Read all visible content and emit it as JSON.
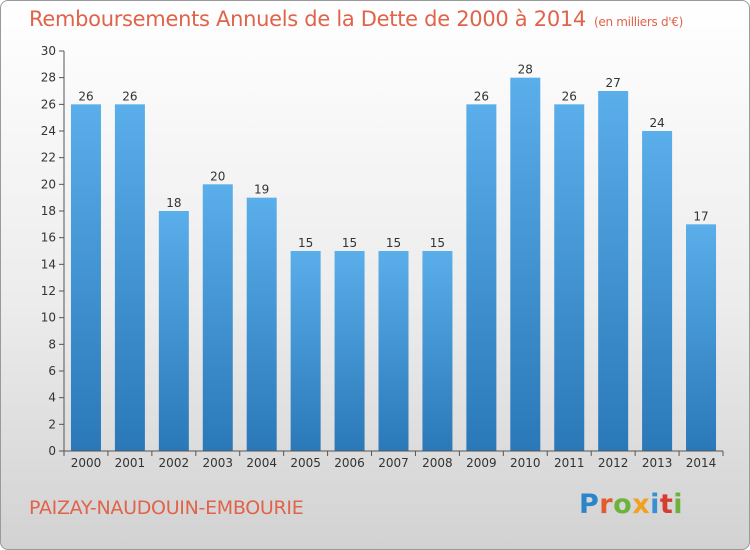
{
  "title": "Remboursements Annuels de la Dette de 2000 à 2014",
  "unit": "(en milliers d'€)",
  "commune": "PAIZAY-NAUDOUIN-EMBOURIE",
  "logo": {
    "p": "P",
    "r": "r",
    "o": "o",
    "x": "x",
    "i": "i",
    "t": "t",
    "i2": "i"
  },
  "chart_data": {
    "type": "bar",
    "title": "Remboursements Annuels de la Dette de 2000 à 2014",
    "categories": [
      "2000",
      "2001",
      "2002",
      "2003",
      "2004",
      "2005",
      "2006",
      "2007",
      "2008",
      "2009",
      "2010",
      "2011",
      "2012",
      "2013",
      "2014"
    ],
    "values": [
      26,
      26,
      18,
      20,
      19,
      15,
      15,
      15,
      15,
      26,
      28,
      26,
      27,
      24,
      17
    ],
    "ylim": [
      0,
      30
    ],
    "yticks": [
      0,
      2,
      4,
      6,
      8,
      10,
      12,
      14,
      16,
      18,
      20,
      22,
      24,
      26,
      28,
      30
    ],
    "grid": false,
    "colors": {
      "bar_top": "#5aaeea",
      "bar_bottom": "#2a78b8"
    }
  }
}
